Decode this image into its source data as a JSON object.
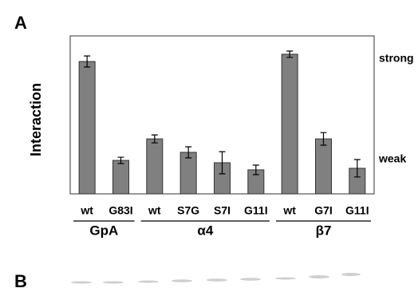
{
  "panel_labels": [
    "A",
    "B"
  ],
  "chart_data": {
    "type": "bar",
    "ylabel": "Interaction",
    "annotations": [
      "strong",
      "weak"
    ],
    "groups": [
      {
        "name": "GpA",
        "categories": [
          "wt",
          "G83I"
        ]
      },
      {
        "name": "α4",
        "categories": [
          "wt",
          "S7G",
          "S7I",
          "G11I"
        ]
      },
      {
        "name": "β7",
        "categories": [
          "wt",
          "G7I",
          "G11I"
        ]
      }
    ],
    "values": [
      83.8,
      21.2,
      34.8,
      26.3,
      19.7,
      15.2,
      88.4,
      34.8,
      16.2
    ],
    "errors": [
      3.5,
      2,
      2.5,
      3.5,
      7,
      3,
      2,
      4,
      5.5
    ],
    "color": "#808080",
    "ylim": [
      0,
      100
    ]
  }
}
